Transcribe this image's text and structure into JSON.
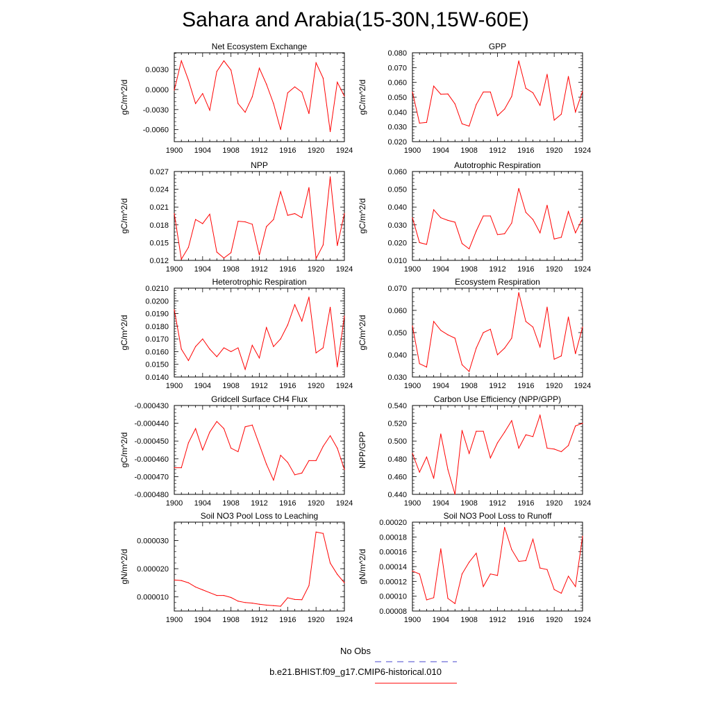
{
  "title": "Sahara and Arabia(15-30N,15W-60E)",
  "colors": {
    "series": "#ff0000",
    "obs": "#4444cc",
    "frame": "#000000"
  },
  "legend": {
    "items": [
      {
        "label": "No Obs",
        "color": "#4444cc",
        "style": "dashed"
      },
      {
        "label": "b.e21.BHIST.f09_g17.CMIP6-historical.010",
        "color": "#ff0000",
        "style": "solid"
      }
    ]
  },
  "chart_data": [
    {
      "type": "line",
      "title": "Net Ecosystem Exchange",
      "ylabel": "gC/m^2/d",
      "xlim": [
        1900,
        1924
      ],
      "xticks": [
        "1900",
        "1904",
        "1908",
        "1912",
        "1916",
        "1920",
        "1924"
      ],
      "ylim": [
        -0.0078,
        0.0055
      ],
      "yticks": [
        "0.0030",
        "0.0000",
        "-0.0030",
        "-0.0060"
      ],
      "ytick_values": [
        0.003,
        0.0,
        -0.003,
        -0.006
      ],
      "series": [
        {
          "x": [
            1900,
            1901,
            1902,
            1903,
            1904,
            1905,
            1906,
            1907,
            1908,
            1909,
            1910,
            1911,
            1912,
            1913,
            1914,
            1915,
            1916,
            1917,
            1918,
            1919,
            1920,
            1921,
            1922,
            1923,
            1924
          ],
          "values": [
            -0.0001,
            0.0043,
            0.0014,
            -0.0021,
            -0.0006,
            -0.0031,
            0.0027,
            0.0043,
            0.0029,
            -0.0021,
            -0.0034,
            -0.0011,
            0.0032,
            0.0008,
            -0.0021,
            -0.006,
            -0.0005,
            0.0004,
            -0.0004,
            -0.0036,
            0.004,
            0.0017,
            -0.0063,
            0.0011,
            -0.001
          ]
        }
      ]
    },
    {
      "type": "line",
      "title": "GPP",
      "ylabel": "gC/m^2/d",
      "xlim": [
        1900,
        1924
      ],
      "xticks": [
        "1900",
        "1904",
        "1908",
        "1912",
        "1916",
        "1920",
        "1924"
      ],
      "ylim": [
        0.02,
        0.08
      ],
      "yticks": [
        "0.080",
        "0.070",
        "0.060",
        "0.050",
        "0.040",
        "0.030",
        "0.020"
      ],
      "ytick_values": [
        0.08,
        0.07,
        0.06,
        0.05,
        0.04,
        0.03,
        0.02
      ],
      "series": [
        {
          "x": [
            1900,
            1901,
            1902,
            1903,
            1904,
            1905,
            1906,
            1907,
            1908,
            1909,
            1910,
            1911,
            1912,
            1913,
            1914,
            1915,
            1916,
            1917,
            1918,
            1919,
            1920,
            1921,
            1922,
            1923,
            1924
          ],
          "values": [
            0.0535,
            0.0325,
            0.033,
            0.0575,
            0.052,
            0.0522,
            0.0455,
            0.032,
            0.0305,
            0.045,
            0.0535,
            0.0535,
            0.0375,
            0.042,
            0.0505,
            0.0745,
            0.056,
            0.053,
            0.0445,
            0.0655,
            0.0345,
            0.0385,
            0.064,
            0.04,
            0.054
          ]
        }
      ]
    },
    {
      "type": "line",
      "title": "NPP",
      "ylabel": "gC/m^2/d",
      "xlim": [
        1900,
        1924
      ],
      "xticks": [
        "1900",
        "1904",
        "1908",
        "1912",
        "1916",
        "1920",
        "1924"
      ],
      "ylim": [
        0.012,
        0.027
      ],
      "yticks": [
        "0.027",
        "0.024",
        "0.021",
        "0.018",
        "0.015",
        "0.012"
      ],
      "ytick_values": [
        0.027,
        0.024,
        0.021,
        0.018,
        0.015,
        0.012
      ],
      "series": [
        {
          "x": [
            1900,
            1901,
            1902,
            1903,
            1904,
            1905,
            1906,
            1907,
            1908,
            1909,
            1910,
            1911,
            1912,
            1913,
            1914,
            1915,
            1916,
            1917,
            1918,
            1919,
            1920,
            1921,
            1922,
            1923,
            1924
          ],
          "values": [
            0.0199,
            0.0122,
            0.0142,
            0.0189,
            0.0182,
            0.0198,
            0.0134,
            0.0124,
            0.0133,
            0.0186,
            0.0185,
            0.0181,
            0.0129,
            0.0177,
            0.0189,
            0.0236,
            0.0196,
            0.0199,
            0.0192,
            0.0243,
            0.0123,
            0.0146,
            0.0261,
            0.0145,
            0.0199
          ]
        }
      ]
    },
    {
      "type": "line",
      "title": "Autotrophic Respiration",
      "ylabel": "gC/m^2/d",
      "xlim": [
        1900,
        1924
      ],
      "xticks": [
        "1900",
        "1904",
        "1908",
        "1912",
        "1916",
        "1920",
        "1924"
      ],
      "ylim": [
        0.01,
        0.06
      ],
      "yticks": [
        "0.060",
        "0.050",
        "0.040",
        "0.030",
        "0.020",
        "0.010"
      ],
      "ytick_values": [
        0.06,
        0.05,
        0.04,
        0.03,
        0.02,
        0.01
      ],
      "series": [
        {
          "x": [
            1900,
            1901,
            1902,
            1903,
            1904,
            1905,
            1906,
            1907,
            1908,
            1909,
            1910,
            1911,
            1912,
            1913,
            1914,
            1915,
            1916,
            1917,
            1918,
            1919,
            1920,
            1921,
            1922,
            1923,
            1924
          ],
          "values": [
            0.034,
            0.02,
            0.019,
            0.0385,
            0.034,
            0.0325,
            0.0315,
            0.0195,
            0.0165,
            0.0265,
            0.035,
            0.035,
            0.0245,
            0.025,
            0.031,
            0.0505,
            0.037,
            0.033,
            0.0255,
            0.041,
            0.022,
            0.023,
            0.0375,
            0.0255,
            0.0335
          ]
        }
      ]
    },
    {
      "type": "line",
      "title": "Heterotrophic Respiration",
      "ylabel": "gC/m^2/d",
      "xlim": [
        1900,
        1924
      ],
      "xticks": [
        "1900",
        "1904",
        "1908",
        "1912",
        "1916",
        "1920",
        "1924"
      ],
      "ylim": [
        0.014,
        0.021
      ],
      "yticks": [
        "0.0210",
        "0.0200",
        "0.0190",
        "0.0180",
        "0.0170",
        "0.0160",
        "0.0150",
        "0.0140"
      ],
      "ytick_values": [
        0.021,
        0.02,
        0.019,
        0.018,
        0.017,
        0.016,
        0.015,
        0.014
      ],
      "series": [
        {
          "x": [
            1900,
            1901,
            1902,
            1903,
            1904,
            1905,
            1906,
            1907,
            1908,
            1909,
            1910,
            1911,
            1912,
            1913,
            1914,
            1915,
            1916,
            1917,
            1918,
            1919,
            1920,
            1921,
            1922,
            1923,
            1924
          ],
          "values": [
            0.0193,
            0.0162,
            0.0153,
            0.0164,
            0.017,
            0.0162,
            0.0156,
            0.0163,
            0.016,
            0.0163,
            0.0146,
            0.0165,
            0.0155,
            0.0179,
            0.0164,
            0.017,
            0.0181,
            0.0197,
            0.0184,
            0.0203,
            0.0159,
            0.0163,
            0.0195,
            0.0148,
            0.0188
          ]
        }
      ]
    },
    {
      "type": "line",
      "title": "Ecosystem Respiration",
      "ylabel": "gC/m^2/d",
      "xlim": [
        1900,
        1924
      ],
      "xticks": [
        "1900",
        "1904",
        "1908",
        "1912",
        "1916",
        "1920",
        "1924"
      ],
      "ylim": [
        0.03,
        0.07
      ],
      "yticks": [
        "0.070",
        "0.060",
        "0.050",
        "0.040",
        "0.030"
      ],
      "ytick_values": [
        0.07,
        0.06,
        0.05,
        0.04,
        0.03
      ],
      "series": [
        {
          "x": [
            1900,
            1901,
            1902,
            1903,
            1904,
            1905,
            1906,
            1907,
            1908,
            1909,
            1910,
            1911,
            1912,
            1913,
            1914,
            1915,
            1916,
            1917,
            1918,
            1919,
            1920,
            1921,
            1922,
            1923,
            1924
          ],
          "values": [
            0.053,
            0.036,
            0.0345,
            0.055,
            0.051,
            0.049,
            0.0475,
            0.0355,
            0.0325,
            0.043,
            0.05,
            0.0515,
            0.04,
            0.043,
            0.0475,
            0.068,
            0.055,
            0.0525,
            0.0435,
            0.0615,
            0.038,
            0.0395,
            0.057,
            0.0405,
            0.0525
          ]
        }
      ]
    },
    {
      "type": "line",
      "title": "Gridcell Surface CH4 Flux",
      "ylabel": "gC/m^2/d",
      "xlim": [
        1900,
        1924
      ],
      "xticks": [
        "1900",
        "1904",
        "1908",
        "1912",
        "1916",
        "1920",
        "1924"
      ],
      "ylim": [
        -0.00048,
        -0.00043
      ],
      "yticks": [
        "-0.000430",
        "-0.000440",
        "-0.000450",
        "-0.000460",
        "-0.000470",
        "-0.000480"
      ],
      "ytick_values": [
        -0.00043,
        -0.00044,
        -0.00045,
        -0.00046,
        -0.00047,
        -0.00048
      ],
      "series": [
        {
          "x": [
            1900,
            1901,
            1902,
            1903,
            1904,
            1905,
            1906,
            1907,
            1908,
            1909,
            1910,
            1911,
            1912,
            1913,
            1914,
            1915,
            1916,
            1917,
            1918,
            1919,
            1920,
            1921,
            1922,
            1923,
            1924
          ],
          "values": [
            -0.000465,
            -0.000465,
            -0.000451,
            -0.000443,
            -0.000455,
            -0.000445,
            -0.000439,
            -0.000443,
            -0.000454,
            -0.000456,
            -0.000442,
            -0.000441,
            -0.000452,
            -0.000463,
            -0.000472,
            -0.000458,
            -0.000462,
            -0.000469,
            -0.000468,
            -0.000461,
            -0.000461,
            -0.000453,
            -0.000447,
            -0.000454,
            -0.000466
          ]
        }
      ]
    },
    {
      "type": "line",
      "title": "Carbon Use Efficiency (NPP/GPP)",
      "ylabel": "NPP/GPP",
      "xlim": [
        1900,
        1924
      ],
      "xticks": [
        "1900",
        "1904",
        "1908",
        "1912",
        "1916",
        "1920",
        "1924"
      ],
      "ylim": [
        0.44,
        0.54
      ],
      "yticks": [
        "0.540",
        "0.520",
        "0.500",
        "0.480",
        "0.460",
        "0.440"
      ],
      "ytick_values": [
        0.54,
        0.52,
        0.5,
        0.48,
        0.46,
        0.44
      ],
      "series": [
        {
          "x": [
            1900,
            1901,
            1902,
            1903,
            1904,
            1905,
            1906,
            1907,
            1908,
            1909,
            1910,
            1911,
            1912,
            1913,
            1914,
            1915,
            1916,
            1917,
            1918,
            1919,
            1920,
            1921,
            1922,
            1923,
            1924
          ],
          "values": [
            0.486,
            0.465,
            0.482,
            0.458,
            0.508,
            0.468,
            0.44,
            0.512,
            0.486,
            0.511,
            0.511,
            0.481,
            0.498,
            0.51,
            0.523,
            0.492,
            0.507,
            0.505,
            0.529,
            0.492,
            0.491,
            0.488,
            0.495,
            0.517,
            0.52
          ]
        }
      ]
    },
    {
      "type": "line",
      "title": "Soil NO3 Pool Loss to Leaching",
      "ylabel": "gN/m^2/d",
      "xlim": [
        1900,
        1924
      ],
      "xticks": [
        "1900",
        "1904",
        "1908",
        "1912",
        "1916",
        "1920",
        "1924"
      ],
      "ylim": [
        5e-06,
        3.65e-05
      ],
      "yticks": [
        "0.000030",
        "0.000020",
        "0.000010"
      ],
      "ytick_values": [
        3e-05,
        2e-05,
        1e-05
      ],
      "series": [
        {
          "x": [
            1900,
            1901,
            1902,
            1903,
            1904,
            1905,
            1906,
            1907,
            1908,
            1909,
            1910,
            1911,
            1912,
            1913,
            1914,
            1915,
            1916,
            1917,
            1918,
            1919,
            1920,
            1921,
            1922,
            1923,
            1924
          ],
          "values": [
            1.6e-05,
            1.58e-05,
            1.5e-05,
            1.35e-05,
            1.25e-05,
            1.15e-05,
            1.05e-05,
            1.05e-05,
            9.8e-06,
            8.5e-06,
            8e-06,
            7.8e-06,
            7.4e-06,
            7.1e-06,
            6.9e-06,
            6.7e-06,
            9.7e-06,
            9.1e-06,
            9e-06,
            1.4e-05,
            3.3e-05,
            3.25e-05,
            2.2e-05,
            1.8e-05,
            1.5e-05
          ]
        }
      ]
    },
    {
      "type": "line",
      "title": "Soil NO3 Pool Loss to Runoff",
      "ylabel": "gN/m^2/d",
      "xlim": [
        1900,
        1924
      ],
      "xticks": [
        "1900",
        "1904",
        "1908",
        "1912",
        "1916",
        "1920",
        "1924"
      ],
      "ylim": [
        8e-05,
        0.0002
      ],
      "yticks": [
        "0.00020",
        "0.00018",
        "0.00016",
        "0.00014",
        "0.00012",
        "0.00010",
        "0.00008"
      ],
      "ytick_values": [
        0.0002,
        0.00018,
        0.00016,
        0.00014,
        0.00012,
        0.0001,
        8e-05
      ],
      "series": [
        {
          "x": [
            1900,
            1901,
            1902,
            1903,
            1904,
            1905,
            1906,
            1907,
            1908,
            1909,
            1910,
            1911,
            1912,
            1913,
            1914,
            1915,
            1916,
            1917,
            1918,
            1919,
            1920,
            1921,
            1922,
            1923,
            1924
          ],
          "values": [
            0.000134,
            0.00013,
            9.5e-05,
            9.8e-05,
            0.000164,
            9.7e-05,
            9e-05,
            0.00013,
            0.000146,
            0.000158,
            0.000113,
            0.00013,
            0.000128,
            0.000193,
            0.000163,
            0.000147,
            0.000148,
            0.000177,
            0.000138,
            0.000136,
            0.000109,
            0.000104,
            0.000127,
            0.000113,
            0.000181
          ]
        }
      ]
    }
  ]
}
